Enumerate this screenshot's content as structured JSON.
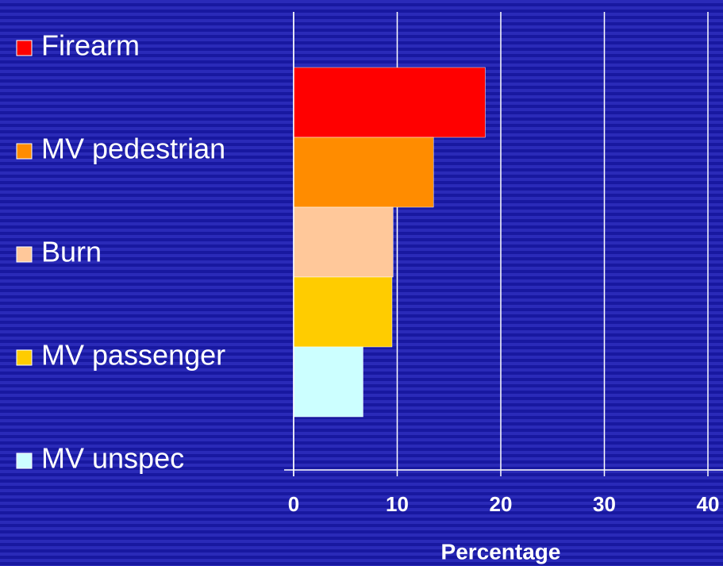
{
  "chart_data": {
    "type": "hbar",
    "xlabel": "Percentage",
    "series": [
      {
        "name": "Firearm",
        "color": "#ff0000",
        "values": [
          18.5
        ]
      },
      {
        "name": "MV pedestrian",
        "color": "#ff8c00",
        "values": [
          13.5
        ]
      },
      {
        "name": "Burn",
        "color": "#ffc89a",
        "values": [
          9.6
        ]
      },
      {
        "name": "MV passenger",
        "color": "#ffcc00",
        "values": [
          9.5
        ]
      },
      {
        "name": "MV unspec",
        "color": "#ccffff",
        "values": [
          6.7
        ]
      }
    ],
    "xlim": [
      0,
      40
    ],
    "xticks": [
      0,
      10,
      20,
      30,
      40
    ],
    "grid": true
  }
}
